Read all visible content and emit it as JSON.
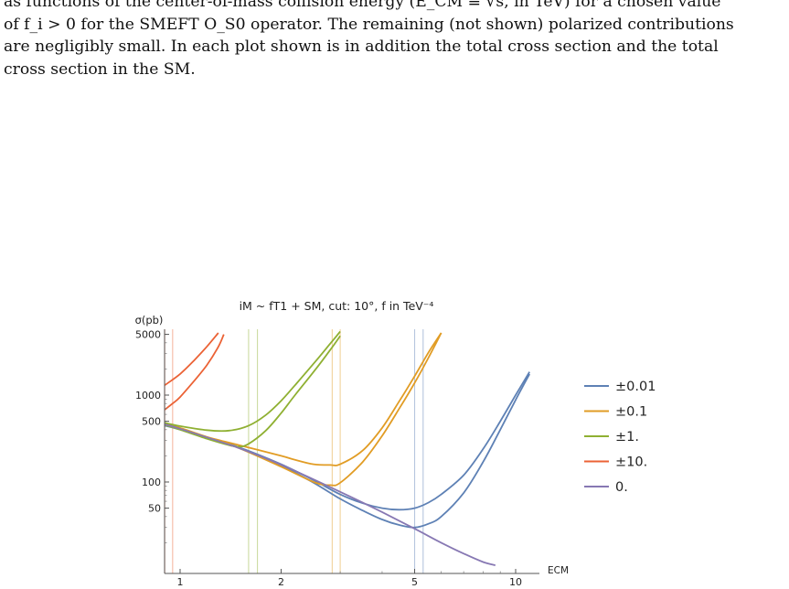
{
  "caption": {
    "line1": "as functions of the center-of-mass collision energy (E_CM ≡ √s, in TeV) for a chosen value",
    "line2": "of f_i > 0 for the SMEFT O_S0 operator. The remaining (not shown) polarized contributions",
    "line3": "are negligibly small. In each plot shown is in addition the total cross section and the total",
    "line4": "cross section in the SM."
  },
  "colors": {
    "blue": "#5E81B5",
    "orange": "#E19C24",
    "green": "#8FB032",
    "red": "#EB6235",
    "purple": "#8778B3"
  },
  "chart_data": {
    "type": "line",
    "title": "iM ~ fT1 + SM,  cut: 10°,  f in TeV⁻⁴",
    "xlabel": "ECM",
    "ylabel": "σ(pb)",
    "xscale": "log",
    "yscale": "log",
    "xlim": [
      0.8,
      12
    ],
    "ylim": [
      12,
      5000
    ],
    "xticks": [
      {
        "value": 1,
        "label": "1"
      },
      {
        "value": 2,
        "label": "2"
      },
      {
        "value": 5,
        "label": "5"
      },
      {
        "value": 10,
        "label": "10"
      }
    ],
    "yticks": [
      {
        "value": 50,
        "label": "50"
      },
      {
        "value": 100,
        "label": "100"
      },
      {
        "value": 500,
        "label": "500"
      },
      {
        "value": 1000,
        "label": "1000"
      },
      {
        "value": 5000,
        "label": "5000"
      }
    ],
    "legend_position": "right",
    "legend": [
      {
        "label": "±0.01",
        "color": "#5E81B5"
      },
      {
        "label": "±0.1",
        "color": "#E19C24"
      },
      {
        "label": "±1.",
        "color": "#8FB032"
      },
      {
        "label": "±10.",
        "color": "#EB6235"
      },
      {
        "label": "0.",
        "color": "#8778B3"
      }
    ],
    "series": [
      {
        "color": "#5E81B5",
        "x": [
          0.9,
          1.0,
          1.2,
          1.5,
          2.0,
          2.5,
          3.0,
          3.5,
          4.0,
          4.5,
          5.0,
          5.5,
          6.0,
          7.0,
          8.0,
          9.0,
          10.0,
          11.0
        ],
        "y": [
          445,
          400,
          320,
          250,
          160,
          105,
          72,
          57,
          50,
          48,
          50,
          58,
          72,
          120,
          240,
          500,
          1000,
          1850
        ]
      },
      {
        "color": "#5E81B5",
        "x": [
          0.9,
          1.0,
          1.2,
          1.5,
          2.0,
          2.5,
          3.0,
          3.5,
          4.0,
          4.5,
          5.0,
          5.5,
          6.0,
          7.0,
          8.0,
          9.0,
          10.0,
          11.0
        ],
        "y": [
          460,
          410,
          325,
          250,
          155,
          98,
          64,
          47,
          37,
          32,
          30,
          33,
          40,
          75,
          170,
          400,
          880,
          1750
        ]
      },
      {
        "color": "#E19C24",
        "x": [
          0.9,
          1.0,
          1.2,
          1.5,
          2.0,
          2.2,
          2.5,
          2.8,
          3.0,
          3.5,
          4.0,
          4.5,
          5.0,
          5.5,
          6.0
        ],
        "y": [
          455,
          410,
          330,
          265,
          200,
          180,
          160,
          157,
          160,
          230,
          420,
          850,
          1650,
          3100,
          5200
        ]
      },
      {
        "color": "#E19C24",
        "x": [
          0.9,
          1.0,
          1.2,
          1.5,
          2.0,
          2.5,
          2.8,
          3.0,
          3.5,
          4.0,
          4.5,
          5.0,
          5.5,
          6.0
        ],
        "y": [
          470,
          420,
          330,
          245,
          150,
          100,
          92,
          98,
          170,
          340,
          700,
          1380,
          2700,
          5200
        ]
      },
      {
        "color": "#8FB032",
        "x": [
          0.9,
          1.0,
          1.2,
          1.4,
          1.6,
          1.8,
          2.0,
          2.2,
          2.5,
          2.8,
          3.0
        ],
        "y": [
          480,
          440,
          395,
          390,
          445,
          590,
          860,
          1300,
          2300,
          3900,
          5400
        ]
      },
      {
        "color": "#8FB032",
        "x": [
          0.9,
          1.0,
          1.2,
          1.4,
          1.5,
          1.6,
          1.8,
          2.0,
          2.2,
          2.5,
          2.8,
          3.0
        ],
        "y": [
          455,
          400,
          315,
          265,
          255,
          275,
          390,
          620,
          1000,
          1850,
          3300,
          4800
        ]
      },
      {
        "color": "#EB6235",
        "x": [
          0.9,
          1.0,
          1.1,
          1.2,
          1.3
        ],
        "y": [
          1300,
          1750,
          2500,
          3600,
          5200
        ]
      },
      {
        "color": "#EB6235",
        "x": [
          0.9,
          0.95,
          1.0,
          1.1,
          1.2,
          1.3,
          1.35
        ],
        "y": [
          680,
          800,
          950,
          1450,
          2200,
          3600,
          5000
        ]
      },
      {
        "color": "#8778B3",
        "x": [
          0.9,
          1.0,
          1.5,
          2.0,
          3.0,
          4.0,
          5.0,
          6.0,
          7.0,
          8.0,
          8.7
        ],
        "y": [
          460,
          410,
          245,
          158,
          77,
          45,
          29,
          20,
          15,
          12,
          11
        ]
      }
    ],
    "cutoff_lines": [
      {
        "x": 0.9,
        "color": "#EB6235"
      },
      {
        "x": 0.95,
        "color": "#EB6235"
      },
      {
        "x": 1.6,
        "color": "#8FB032"
      },
      {
        "x": 1.7,
        "color": "#8FB032"
      },
      {
        "x": 2.84,
        "color": "#E19C24"
      },
      {
        "x": 3.0,
        "color": "#E19C24"
      },
      {
        "x": 5.0,
        "color": "#5E81B5"
      },
      {
        "x": 5.3,
        "color": "#5E81B5"
      }
    ]
  }
}
